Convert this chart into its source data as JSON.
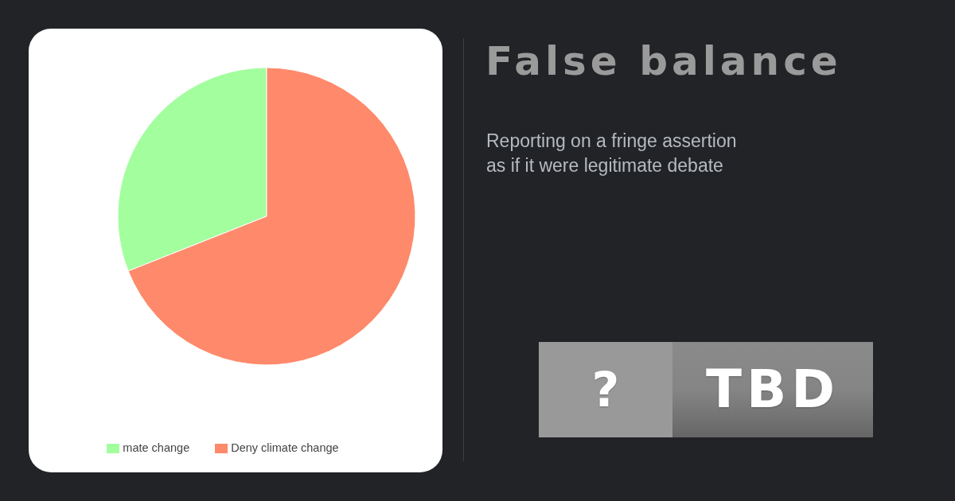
{
  "chart_data": {
    "type": "pie",
    "title": "False balance",
    "subtitle": "Reporting on a fringe assertion as if it were legitimate debate",
    "categories": [
      "mate change",
      "Deny climate change"
    ],
    "values": [
      31,
      69
    ],
    "colors": [
      "#a3fe9e",
      "#fe8a6b"
    ],
    "legend": "bottom",
    "annotations": [
      "?",
      "TBD"
    ]
  }
}
